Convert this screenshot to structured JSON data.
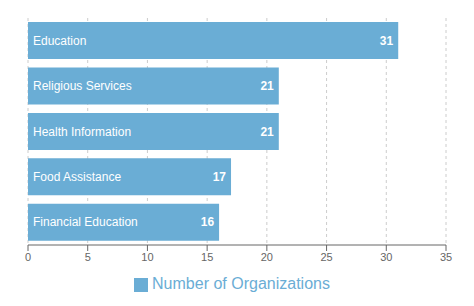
{
  "chart_data": {
    "type": "bar",
    "orientation": "horizontal",
    "categories": [
      "Financial Education",
      "Food Assistance",
      "Health Information",
      "Religious Services",
      "Education"
    ],
    "series": [
      {
        "name": "Number of Organizations",
        "color": "#6aadd5",
        "values": [
          16,
          17,
          21,
          21,
          31
        ]
      }
    ],
    "xlim": [
      0,
      35
    ],
    "xticks": [
      0,
      5,
      10,
      15,
      20,
      25,
      30,
      35
    ],
    "grid": true,
    "legend": "bottom",
    "data_labels": true,
    "tick_labels": "x"
  }
}
